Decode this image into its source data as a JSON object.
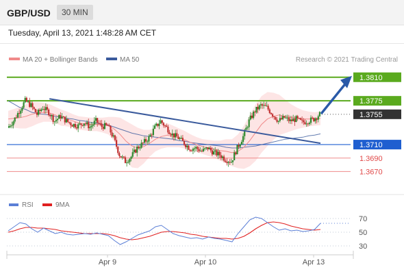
{
  "header": {
    "symbol": "GBP/USD",
    "timeframe": "30 MIN",
    "datetime": "Tuesday, April 13, 2021 1:48:28 AM CET"
  },
  "legend": {
    "ma20_label": "MA 20 + Bollinger Bands",
    "ma50_label": "MA 50",
    "credit": "Research © 2021 Trading Central",
    "rsi_label": "RSI",
    "rsi_ma_label": "9MA"
  },
  "colors": {
    "ma20": "#f08a8a",
    "ma50": "#3a5a9c",
    "bollinger_fill": "#fde2e2",
    "target_green": "#5aaa1e",
    "support_blue": "#1f5fd0",
    "support_red": "#ef8a8a",
    "current_price": "#333333",
    "arrow": "#2a5aa8",
    "rsi": "#5b7fd6",
    "rsi_ma": "#e02020",
    "candle_up": "#2f8a2f",
    "candle_down": "#c03030"
  },
  "chart_data": [
    {
      "type": "candlestick",
      "price_range": [
        1.3645,
        1.3825
      ],
      "x_ticks": [
        "Apr 9",
        "Apr 10",
        "Apr 13"
      ],
      "levels": [
        {
          "label": "1.3810",
          "value": 1.381,
          "role": "target",
          "color": "#5aaa1e"
        },
        {
          "label": "1.3775",
          "value": 1.3775,
          "role": "target",
          "color": "#5aaa1e"
        },
        {
          "label": "1.3755",
          "value": 1.3755,
          "role": "current",
          "color": "#333333"
        },
        {
          "label": "1.3710",
          "value": 1.371,
          "role": "pivot",
          "color": "#1f5fd0"
        },
        {
          "label": "1.3690",
          "value": 1.369,
          "role": "support",
          "color": "#ef8a8a"
        },
        {
          "label": "1.3670",
          "value": 1.367,
          "role": "support",
          "color": "#ef8a8a"
        }
      ],
      "price_path": [
        1.3735,
        1.3745,
        1.376,
        1.3775,
        1.3768,
        1.3755,
        1.3765,
        1.3758,
        1.3745,
        1.3752,
        1.3745,
        1.374,
        1.3738,
        1.3743,
        1.3736,
        1.3745,
        1.3737,
        1.3738,
        1.372,
        1.3695,
        1.3685,
        1.3692,
        1.3705,
        1.3712,
        1.372,
        1.3735,
        1.3745,
        1.3735,
        1.3725,
        1.372,
        1.3712,
        1.3704,
        1.3705,
        1.37,
        1.3705,
        1.3698,
        1.3695,
        1.3688,
        1.3685,
        1.3705,
        1.3722,
        1.3745,
        1.376,
        1.3768,
        1.3765,
        1.3755,
        1.3745,
        1.375,
        1.3745,
        1.3748,
        1.3743,
        1.3745,
        1.3748,
        1.3755
      ],
      "ma20": [
        1.3748,
        1.3749,
        1.375,
        1.3752,
        1.3755,
        1.3757,
        1.3758,
        1.3757,
        1.3754,
        1.375,
        1.3748,
        1.3745,
        1.3742,
        1.3741,
        1.374,
        1.374,
        1.3739,
        1.3738,
        1.3733,
        1.3725,
        1.3715,
        1.3708,
        1.3705,
        1.3707,
        1.3712,
        1.3718,
        1.3722,
        1.3724,
        1.3722,
        1.372,
        1.3717,
        1.3713,
        1.371,
        1.3707,
        1.3705,
        1.3703,
        1.3701,
        1.37,
        1.3698,
        1.37,
        1.3706,
        1.3716,
        1.3728,
        1.374,
        1.3748,
        1.3752,
        1.3754,
        1.3752,
        1.375,
        1.3749,
        1.3748,
        1.3748,
        1.3748,
        1.3749
      ],
      "ma50": [
        1.3775,
        1.377,
        1.3765,
        1.3762,
        1.3758,
        1.3756,
        1.3755,
        1.3754,
        1.3752,
        1.375,
        1.3749,
        1.3748,
        1.3746,
        1.3745,
        1.3743,
        1.3742,
        1.374,
        1.3739,
        1.3736,
        1.3733,
        1.373,
        1.3727,
        1.3725,
        1.3723,
        1.3722,
        1.3721,
        1.372,
        1.3719,
        1.3718,
        1.3716,
        1.3715,
        1.3713,
        1.3712,
        1.3711,
        1.371,
        1.3709,
        1.3708,
        1.3706,
        1.3705,
        1.3705,
        1.3706,
        1.3707,
        1.3708,
        1.371,
        1.3712,
        1.3714,
        1.3716,
        1.3718,
        1.3719,
        1.372,
        1.3721,
        1.3723,
        1.3724,
        1.3726
      ],
      "bollinger_halfwidth": [
        0.0012,
        0.0014,
        0.0016,
        0.0018,
        0.0018,
        0.0016,
        0.0014,
        0.0013,
        0.0012,
        0.0012,
        0.0011,
        0.001,
        0.001,
        0.001,
        0.001,
        0.001,
        0.0011,
        0.0013,
        0.0018,
        0.0025,
        0.003,
        0.0032,
        0.003,
        0.0025,
        0.002,
        0.0018,
        0.0018,
        0.0018,
        0.0016,
        0.0014,
        0.0013,
        0.0012,
        0.0011,
        0.0011,
        0.0012,
        0.0013,
        0.0015,
        0.0018,
        0.002,
        0.0025,
        0.0032,
        0.0038,
        0.0042,
        0.0042,
        0.004,
        0.0035,
        0.003,
        0.0025,
        0.002,
        0.0016,
        0.0013,
        0.0011,
        0.001,
        0.001
      ],
      "trendline": {
        "start": {
          "index": 7,
          "price": 1.3778
        },
        "end": {
          "index": 53,
          "price": 1.3712
        }
      },
      "arrow": {
        "from_price": 1.3755,
        "to_price": 1.381
      }
    },
    {
      "type": "line",
      "name": "RSI",
      "ylim": [
        20,
        80
      ],
      "yticks": [
        70,
        50,
        30
      ],
      "rsi": [
        52,
        58,
        64,
        62,
        55,
        50,
        56,
        52,
        48,
        50,
        47,
        46,
        47,
        48,
        47,
        49,
        47,
        45,
        38,
        32,
        36,
        41,
        46,
        49,
        52,
        58,
        60,
        54,
        48,
        45,
        43,
        41,
        42,
        40,
        43,
        41,
        40,
        38,
        36,
        48,
        58,
        68,
        72,
        70,
        64,
        58,
        53,
        55,
        52,
        53,
        51,
        52,
        54,
        63
      ],
      "rsi_ma": [
        50,
        52,
        55,
        57,
        57,
        56,
        56,
        55,
        54,
        52,
        51,
        50,
        49,
        48,
        48,
        48,
        48,
        47,
        45,
        42,
        40,
        39,
        40,
        42,
        44,
        47,
        50,
        51,
        51,
        50,
        49,
        47,
        46,
        44,
        43,
        42,
        41,
        41,
        40,
        41,
        44,
        49,
        55,
        60,
        64,
        65,
        64,
        62,
        59,
        57,
        55,
        54,
        53,
        54
      ]
    }
  ]
}
